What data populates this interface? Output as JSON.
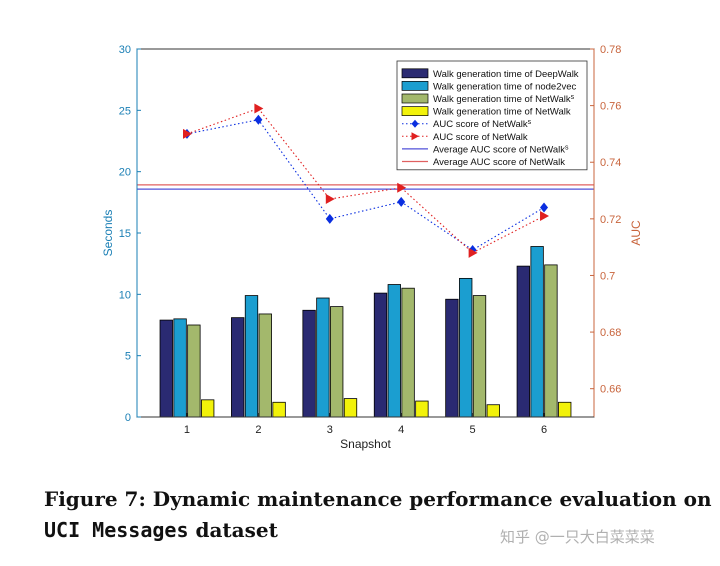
{
  "chart_data": {
    "type": "bar",
    "xlabel": "Snapshot",
    "ylabel": "Seconds",
    "y2label": "AUC",
    "categories": [
      "1",
      "2",
      "3",
      "4",
      "5",
      "6"
    ],
    "ylim": [
      0,
      30
    ],
    "y2lim": [
      0.65,
      0.78
    ],
    "yticks": [
      "0",
      "5",
      "10",
      "15",
      "20",
      "25",
      "30"
    ],
    "y2ticks": [
      "0.66",
      "0.68",
      "0.7",
      "0.72",
      "0.74",
      "0.76",
      "0.78"
    ],
    "legend_position": "top-right",
    "grid": false,
    "bar_series": [
      {
        "name": "Walk generation time of DeepWalk",
        "color": "#2a2a72",
        "values": [
          7.9,
          8.1,
          8.7,
          10.1,
          9.6,
          12.3
        ]
      },
      {
        "name": "Walk generation time of node2vec",
        "color": "#1b9ed0",
        "values": [
          8.0,
          9.9,
          9.7,
          10.8,
          11.3,
          13.9
        ]
      },
      {
        "name": "Walk generation time of NetWalk",
        "name_sup": "s",
        "color": "#a3b86c",
        "values": [
          7.5,
          8.4,
          9.0,
          10.5,
          9.9,
          12.4
        ]
      },
      {
        "name": "Walk generation time of NetWalk",
        "color": "#f2f20a",
        "values": [
          1.4,
          1.2,
          1.5,
          1.3,
          1.0,
          1.2
        ]
      }
    ],
    "line_series": [
      {
        "name": "AUC score of NetWalk",
        "name_sup": "s",
        "color": "#0a2ee0",
        "marker": "diamond",
        "values": [
          0.75,
          0.755,
          0.72,
          0.726,
          0.709,
          0.724
        ]
      },
      {
        "name": "AUC score of NetWalk",
        "color": "#e02020",
        "marker": "triangle-right",
        "values": [
          0.75,
          0.759,
          0.727,
          0.731,
          0.708,
          0.721
        ]
      }
    ],
    "hlines": [
      {
        "name": "Average AUC score of NetWalk",
        "name_sup": "s",
        "color": "#5050d8",
        "value": 0.7305
      },
      {
        "name": "Average AUC score of NetWalk",
        "color": "#e06060",
        "value": 0.732
      }
    ],
    "axis_colors": {
      "left": "#1a7fb5",
      "right": "#c8643c"
    }
  },
  "caption": {
    "prefix": "Figure 7: Dynamic maintenance performance evaluation on",
    "mono": "UCI Messages",
    "suffix": " dataset"
  },
  "watermark": "知乎 @一只大白菜菜菜"
}
